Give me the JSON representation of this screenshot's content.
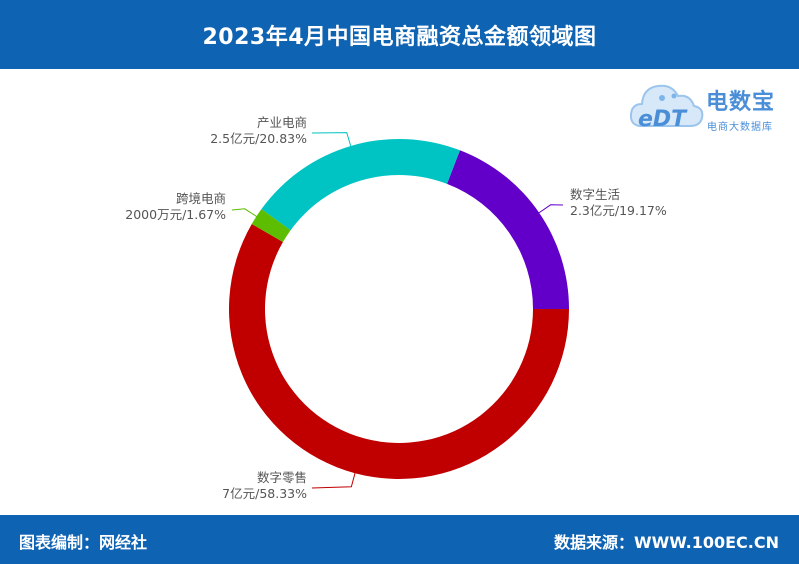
{
  "header": {
    "title": "2023年4月中国电商融资总金额领域图"
  },
  "logo": {
    "name": "电数宝",
    "subtitle": "电商大数据库",
    "mark": "eDT",
    "icon": "cloud-icon"
  },
  "footer": {
    "left": "图表编制：网经社",
    "right": "数据来源：WWW.100EC.CN"
  },
  "colors": {
    "header_bg": "#0e63b3",
    "logo": "#4a8ed8"
  },
  "chart_data": {
    "type": "pie",
    "donut": true,
    "title": "2023年4月中国电商融资总金额领域图",
    "slices": [
      {
        "name": "数字生活",
        "value_label": "2.3亿元/19.17%",
        "value": 2.3,
        "percent": 19.17,
        "color": "#6200c9"
      },
      {
        "name": "数字零售",
        "value_label": "7亿元/58.33%",
        "value": 7,
        "percent": 58.33,
        "color": "#c00000"
      },
      {
        "name": "跨境电商",
        "value_label": "2000万元/1.67%",
        "value": 0.2,
        "percent": 1.67,
        "color": "#5dbd00"
      },
      {
        "name": "产业电商",
        "value_label": "2.5亿元/20.83%",
        "value": 2.5,
        "percent": 20.83,
        "color": "#00c3c3"
      }
    ]
  }
}
